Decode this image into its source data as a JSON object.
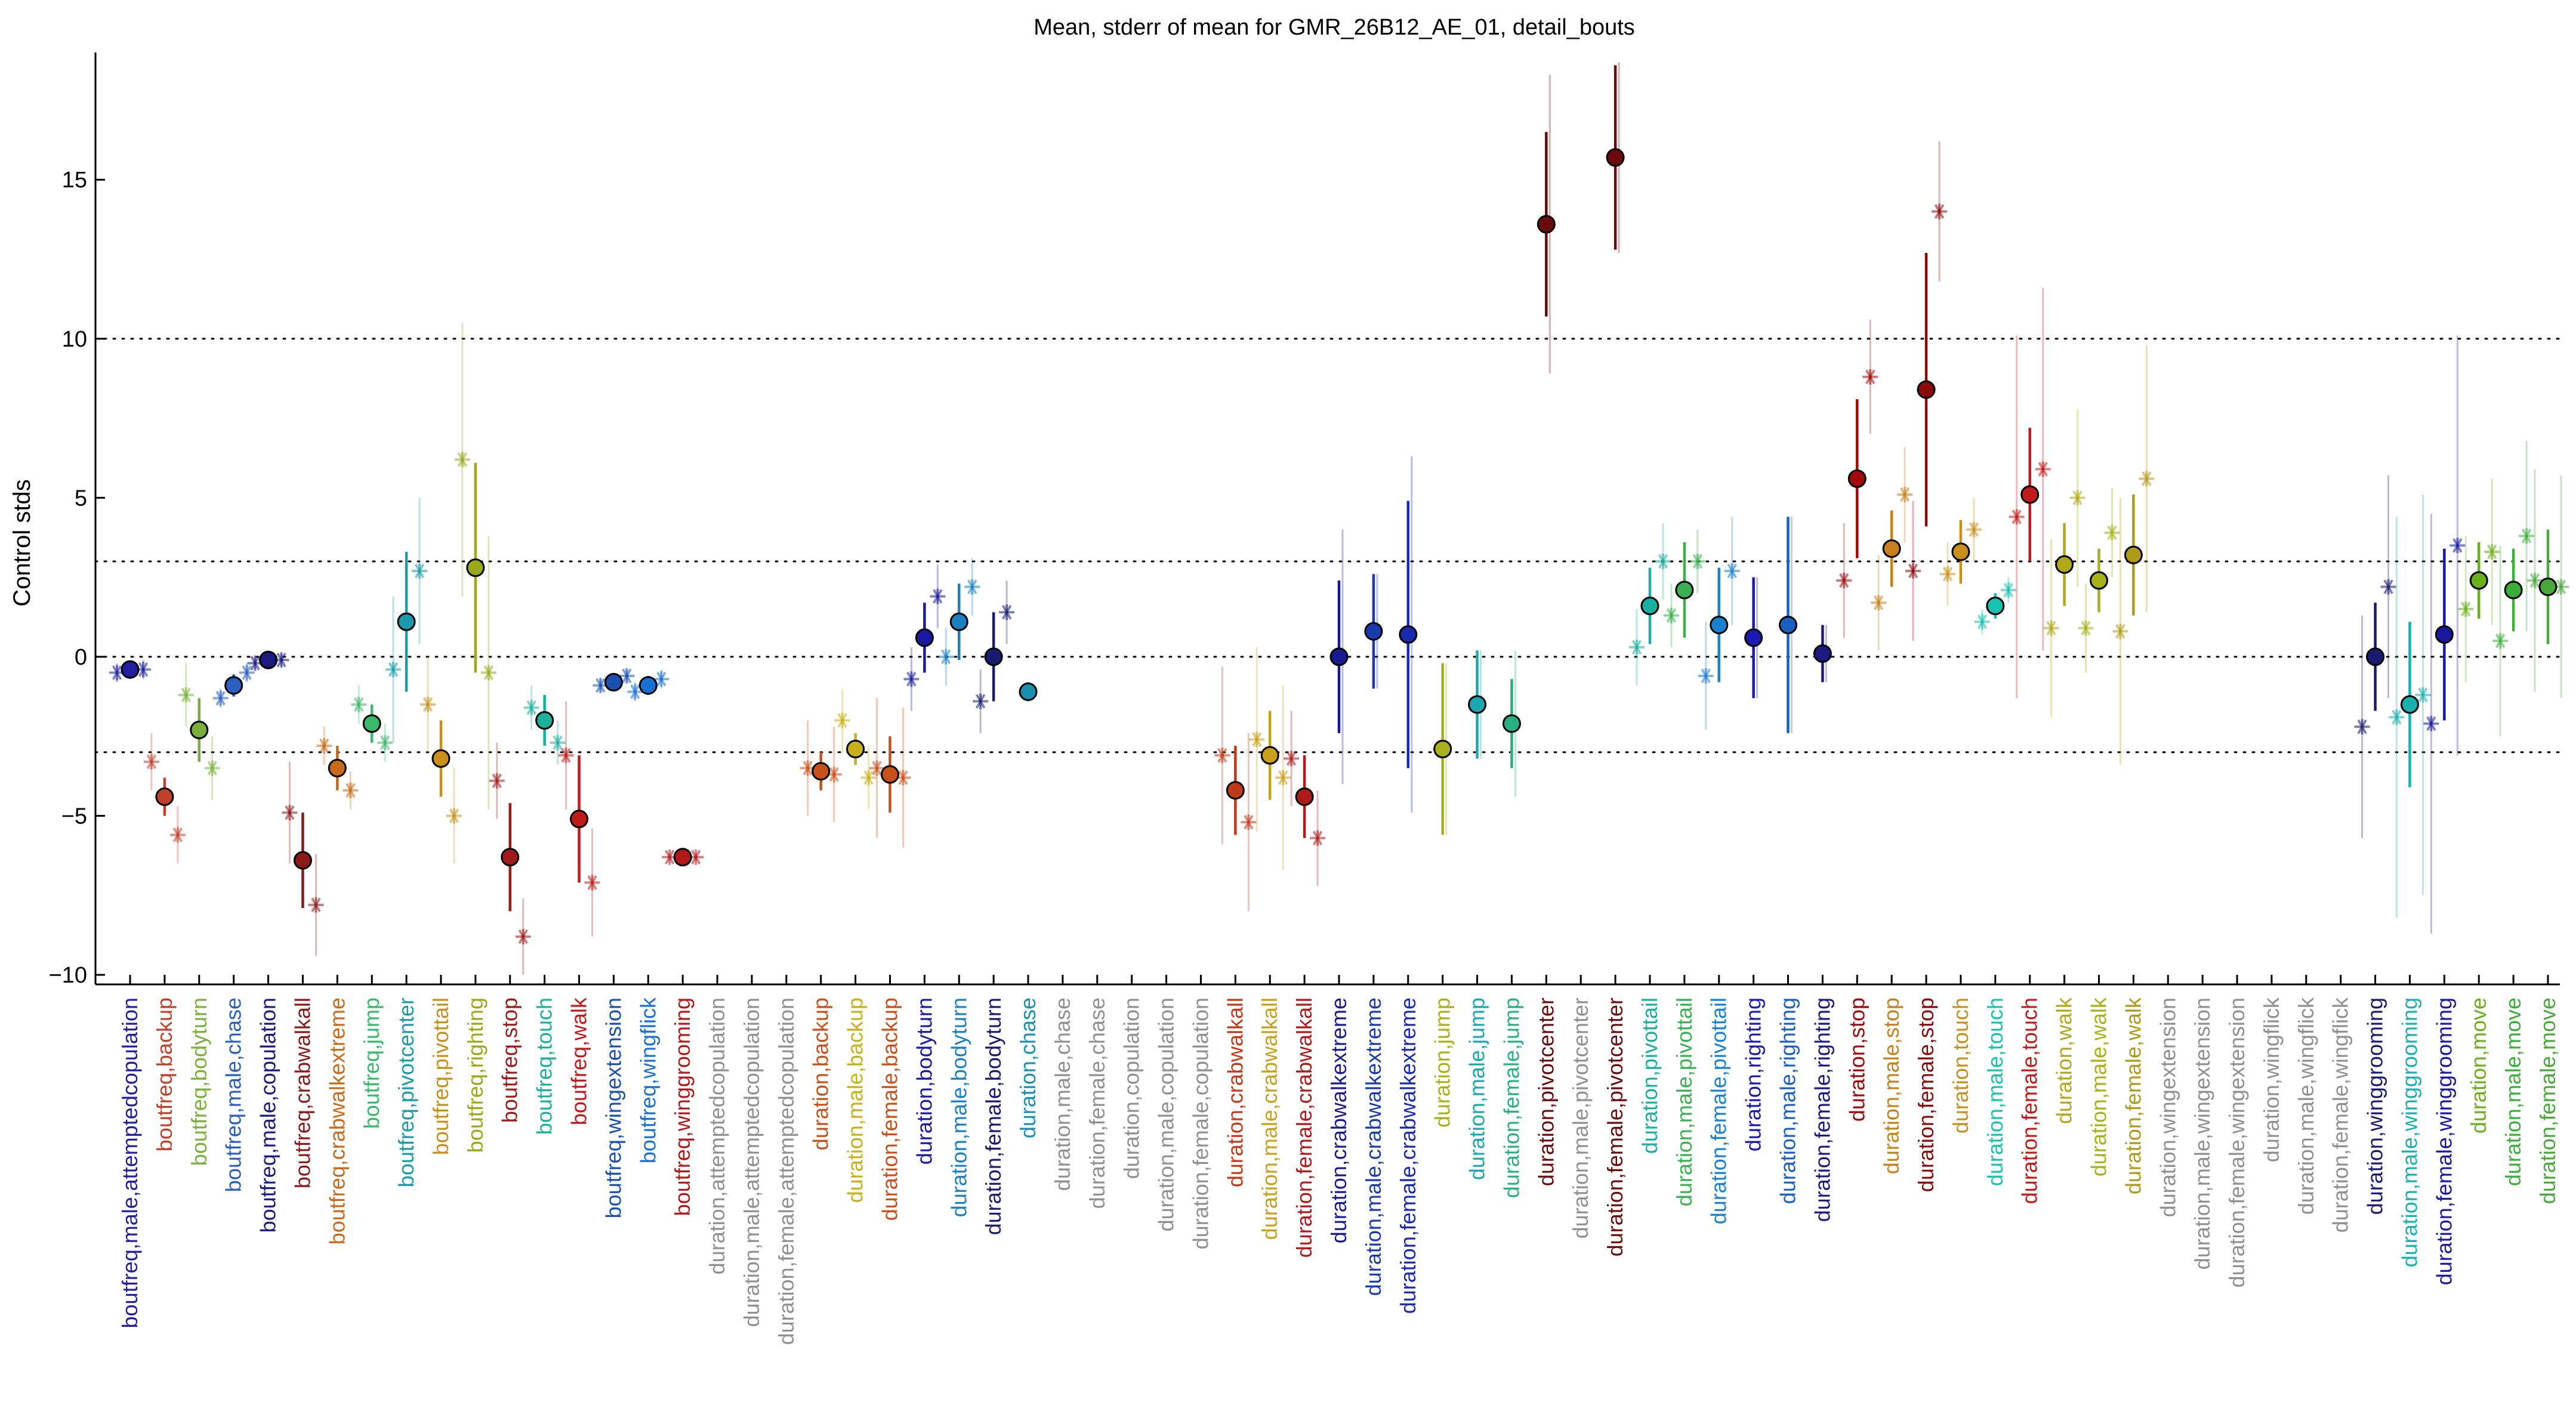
{
  "chart_data": {
    "type": "scatter",
    "title": "Mean, stderr of mean for GMR_26B12_AE_01, detail_bouts",
    "ylabel": "Control stds",
    "xlabel": "",
    "ylim": [
      -10.3,
      19.0
    ],
    "yticks": [
      -10,
      -5,
      0,
      5,
      10,
      15
    ],
    "reference_lines": [
      -3,
      0,
      3,
      10
    ],
    "grid": false,
    "series_description": "Filled circles: mean with stderr bar; asterisks: individual experiment means (faded)",
    "categories": [
      {
        "label": "boutfreq,male,attemptedcopulation",
        "color": "#1f1fa0",
        "mean": -0.4,
        "err": 0.15,
        "stars": [
          -0.5,
          -0.4
        ],
        "star_err": 0.3
      },
      {
        "label": "boutfreq,backup",
        "color": "#c0402a",
        "mean": -4.4,
        "err": 0.6,
        "stars": [
          -3.3,
          -5.6
        ],
        "star_err": 0.9
      },
      {
        "label": "boutfreq,bodyturn",
        "color": "#7ab03a",
        "mean": -2.3,
        "err": 1.0,
        "stars": [
          -1.2,
          -3.5
        ],
        "star_err": 1.0
      },
      {
        "label": "boutfreq,male,chase",
        "color": "#2a5fbf",
        "mean": -0.9,
        "err": 0.35,
        "stars": [
          -1.3,
          -0.5
        ],
        "star_err": 0.3
      },
      {
        "label": "boutfreq,male,copulation",
        "color": "#1a1a80",
        "mean": -0.1,
        "err": 0.1,
        "stars": [
          -0.2,
          -0.1
        ],
        "star_err": 0.2
      },
      {
        "label": "boutfreq,crabwalkall",
        "color": "#8a1a1a",
        "mean": -6.4,
        "err": 1.5,
        "stars": [
          -4.9,
          -7.8
        ],
        "star_err": 1.6
      },
      {
        "label": "boutfreq,crabwalkextreme",
        "color": "#c86a1a",
        "mean": -3.5,
        "err": 0.7,
        "stars": [
          -2.8,
          -4.2
        ],
        "star_err": 0.6
      },
      {
        "label": "boutfreq,jump",
        "color": "#3ab86a",
        "mean": -2.1,
        "err": 0.6,
        "stars": [
          -1.5,
          -2.7
        ],
        "star_err": 0.6
      },
      {
        "label": "boutfreq,pivotcenter",
        "color": "#1a9aaa",
        "mean": 1.1,
        "err": 2.2,
        "stars": [
          -0.4,
          2.7
        ],
        "star_err": 2.3
      },
      {
        "label": "boutfreq,pivottail",
        "color": "#c8901a",
        "mean": -3.2,
        "err": 1.2,
        "stars": [
          -1.5,
          -5.0
        ],
        "star_err": 1.5
      },
      {
        "label": "boutfreq,righting",
        "color": "#9aa81a",
        "mean": 2.8,
        "err": 3.3,
        "stars": [
          6.2,
          -0.5
        ],
        "star_err": 4.3
      },
      {
        "label": "boutfreq,stop",
        "color": "#a01a1a",
        "mean": -6.3,
        "err": 1.7,
        "stars": [
          -3.9,
          -8.8
        ],
        "star_err": 1.2
      },
      {
        "label": "boutfreq,touch",
        "color": "#1ab09a",
        "mean": -2.0,
        "err": 0.8,
        "stars": [
          -1.6,
          -2.7
        ],
        "star_err": 0.7
      },
      {
        "label": "boutfreq,walk",
        "color": "#c01a1a",
        "mean": -5.1,
        "err": 2.0,
        "stars": [
          -3.1,
          -7.1
        ],
        "star_err": 1.7
      },
      {
        "label": "boutfreq,wingextension",
        "color": "#1a50b0",
        "mean": -0.8,
        "err": 0.2,
        "stars": [
          -0.9,
          -0.6
        ],
        "star_err": 0.2
      },
      {
        "label": "boutfreq,wingflick",
        "color": "#1a70d0",
        "mean": -0.9,
        "err": 0.3,
        "stars": [
          -1.1,
          -0.7
        ],
        "star_err": 0.3
      },
      {
        "label": "boutfreq,winggrooming",
        "color": "#b01a1a",
        "mean": -6.3,
        "err": 0.1,
        "stars": [
          -6.3,
          -6.3
        ],
        "star_err": 0.1
      },
      {
        "label": "duration,attemptedcopulation",
        "color": "#909090",
        "mean": null
      },
      {
        "label": "duration,male,attemptedcopulation",
        "color": "#909090",
        "mean": null
      },
      {
        "label": "duration,female,attemptedcopulation",
        "color": "#909090",
        "mean": null
      },
      {
        "label": "duration,backup",
        "color": "#c8501a",
        "mean": -3.6,
        "err": 0.6,
        "stars": [
          -3.5,
          -3.7
        ],
        "star_err": 1.5
      },
      {
        "label": "duration,male,backup",
        "color": "#c8b01a",
        "mean": -2.9,
        "err": 0.5,
        "stars": [
          -2.0,
          -3.8
        ],
        "star_err": 1.0
      },
      {
        "label": "duration,female,backup",
        "color": "#c8501a",
        "mean": -3.7,
        "err": 1.2,
        "stars": [
          -3.5,
          -3.8
        ],
        "star_err": 2.2
      },
      {
        "label": "duration,bodyturn",
        "color": "#1a1aa0",
        "mean": 0.6,
        "err": 1.1,
        "stars": [
          -0.7,
          1.9
        ],
        "star_err": 1.0
      },
      {
        "label": "duration,male,bodyturn",
        "color": "#1a80c0",
        "mean": 1.1,
        "err": 1.2,
        "stars": [
          0.0,
          2.2
        ],
        "star_err": 0.9
      },
      {
        "label": "duration,female,bodyturn",
        "color": "#1a1a70",
        "mean": 0.0,
        "err": 1.4,
        "stars": [
          -1.4,
          1.4
        ],
        "star_err": 1.0
      },
      {
        "label": "duration,chase",
        "color": "#1a90b0",
        "mean": -1.1,
        "err": 0.3,
        "stars": [],
        "star_err": 0
      },
      {
        "label": "duration,male,chase",
        "color": "#909090",
        "mean": null
      },
      {
        "label": "duration,female,chase",
        "color": "#909090",
        "mean": null
      },
      {
        "label": "duration,copulation",
        "color": "#909090",
        "mean": null
      },
      {
        "label": "duration,male,copulation",
        "color": "#909090",
        "mean": null
      },
      {
        "label": "duration,female,copulation",
        "color": "#909090",
        "mean": null
      },
      {
        "label": "duration,crabwalkall",
        "color": "#c03a1a",
        "mean": -4.2,
        "err": 1.4,
        "stars": [
          -3.1,
          -5.2
        ],
        "star_err": 2.8
      },
      {
        "label": "duration,male,crabwalkall",
        "color": "#c8a01a",
        "mean": -3.1,
        "err": 1.4,
        "stars": [
          -2.6,
          -3.8
        ],
        "star_err": 2.9
      },
      {
        "label": "duration,female,crabwalkall",
        "color": "#b01a1a",
        "mean": -4.4,
        "err": 1.3,
        "stars": [
          -3.2,
          -5.7
        ],
        "star_err": 1.5
      },
      {
        "label": "duration,crabwalkextreme",
        "color": "#1a1a90",
        "mean": 0.0,
        "err": 2.4,
        "stars": [],
        "star_err": 4.0
      },
      {
        "label": "duration,male,crabwalkextreme",
        "color": "#1a3ab0",
        "mean": 0.8,
        "err": 1.8,
        "stars": [],
        "star_err": 1.8
      },
      {
        "label": "duration,female,crabwalkextreme",
        "color": "#1a2ab0",
        "mean": 0.7,
        "err": 4.2,
        "stars": [],
        "star_err": 5.6
      },
      {
        "label": "duration,jump",
        "color": "#a8b01a",
        "mean": -2.9,
        "err": 2.7,
        "stars": [],
        "star_err": 2.7
      },
      {
        "label": "duration,male,jump",
        "color": "#1aa8b0",
        "mean": -1.5,
        "err": 1.7,
        "stars": [],
        "star_err": 1.7
      },
      {
        "label": "duration,female,jump",
        "color": "#2ab080",
        "mean": -2.1,
        "err": 1.4,
        "stars": [],
        "star_err": 2.3
      },
      {
        "label": "duration,pivotcenter",
        "color": "#6a0a0a",
        "mean": 13.6,
        "err": 2.9,
        "stars": [],
        "star_err": 4.7
      },
      {
        "label": "duration,male,pivotcenter",
        "color": "#909090",
        "mean": null
      },
      {
        "label": "duration,female,pivotcenter",
        "color": "#6a0a0a",
        "mean": 15.7,
        "err": 2.9,
        "stars": [],
        "star_err": 3.0
      },
      {
        "label": "duration,pivottail",
        "color": "#1ab0a0",
        "mean": 1.6,
        "err": 1.2,
        "stars": [
          0.3,
          3.0
        ],
        "star_err": 1.2
      },
      {
        "label": "duration,male,pivottail",
        "color": "#3ab050",
        "mean": 2.1,
        "err": 1.5,
        "stars": [
          1.3,
          3.0
        ],
        "star_err": 1.0
      },
      {
        "label": "duration,female,pivottail",
        "color": "#1a80d0",
        "mean": 1.0,
        "err": 1.8,
        "stars": [
          -0.6,
          2.7
        ],
        "star_err": 1.7
      },
      {
        "label": "duration,righting",
        "color": "#1a1ab0",
        "mean": 0.6,
        "err": 1.9,
        "stars": [],
        "star_err": 1.9
      },
      {
        "label": "duration,male,righting",
        "color": "#1a60c0",
        "mean": 1.0,
        "err": 3.4,
        "stars": [],
        "star_err": 3.4
      },
      {
        "label": "duration,female,righting",
        "color": "#1a1a80",
        "mean": 0.1,
        "err": 0.9,
        "stars": [],
        "star_err": 0.9
      },
      {
        "label": "duration,stop",
        "color": "#a00a0a",
        "mean": 5.6,
        "err": 2.5,
        "stars": [
          2.4,
          8.8
        ],
        "star_err": 1.8
      },
      {
        "label": "duration,male,stop",
        "color": "#c8801a",
        "mean": 3.4,
        "err": 1.2,
        "stars": [
          1.7,
          5.1
        ],
        "star_err": 1.5
      },
      {
        "label": "duration,female,stop",
        "color": "#8a0a0a",
        "mean": 8.4,
        "err": 4.3,
        "stars": [
          2.7,
          14.0
        ],
        "star_err": 2.2
      },
      {
        "label": "duration,touch",
        "color": "#c8901a",
        "mean": 3.3,
        "err": 1.0,
        "stars": [
          2.6,
          4.0
        ],
        "star_err": 1.0
      },
      {
        "label": "duration,male,touch",
        "color": "#1ac0b0",
        "mean": 1.6,
        "err": 0.4,
        "stars": [
          1.1,
          2.1
        ],
        "star_err": 0.4
      },
      {
        "label": "duration,female,touch",
        "color": "#c01a1a",
        "mean": 5.1,
        "err": 2.1,
        "stars": [
          4.4,
          5.9
        ],
        "star_err": 5.7
      },
      {
        "label": "duration,walk",
        "color": "#b0a81a",
        "mean": 2.9,
        "err": 1.3,
        "stars": [
          0.9,
          5.0
        ],
        "star_err": 2.8
      },
      {
        "label": "duration,male,walk",
        "color": "#a8b01a",
        "mean": 2.4,
        "err": 1.0,
        "stars": [
          0.9,
          3.9
        ],
        "star_err": 1.4
      },
      {
        "label": "duration,female,walk",
        "color": "#b09a1a",
        "mean": 3.2,
        "err": 1.9,
        "stars": [
          0.8,
          5.6
        ],
        "star_err": 4.2
      },
      {
        "label": "duration,wingextension",
        "color": "#909090",
        "mean": null
      },
      {
        "label": "duration,male,wingextension",
        "color": "#909090",
        "mean": null
      },
      {
        "label": "duration,female,wingextension",
        "color": "#909090",
        "mean": null
      },
      {
        "label": "duration,wingflick",
        "color": "#909090",
        "mean": null
      },
      {
        "label": "duration,male,wingflick",
        "color": "#909090",
        "mean": null
      },
      {
        "label": "duration,female,wingflick",
        "color": "#909090",
        "mean": null
      },
      {
        "label": "duration,winggrooming",
        "color": "#1a1a70",
        "mean": 0.0,
        "err": 1.7,
        "stars": [
          -2.2,
          2.2
        ],
        "star_err": 3.5
      },
      {
        "label": "duration,male,winggrooming",
        "color": "#1ab0b0",
        "mean": -1.5,
        "err": 2.6,
        "stars": [
          -1.9,
          -1.2
        ],
        "star_err": 6.3
      },
      {
        "label": "duration,female,winggrooming",
        "color": "#1a1aa0",
        "mean": 0.7,
        "err": 2.7,
        "stars": [
          -2.1,
          3.5
        ],
        "star_err": 6.6
      },
      {
        "label": "duration,move",
        "color": "#6ab01a",
        "mean": 2.4,
        "err": 1.2,
        "stars": [
          1.5,
          3.3
        ],
        "star_err": 2.3
      },
      {
        "label": "duration,male,move",
        "color": "#3ab03a",
        "mean": 2.1,
        "err": 1.3,
        "stars": [
          0.5,
          3.8
        ],
        "star_err": 3.0
      },
      {
        "label": "duration,female,move",
        "color": "#4aa83a",
        "mean": 2.2,
        "err": 1.8,
        "stars": [
          2.4,
          2.2
        ],
        "star_err": 3.5
      }
    ]
  }
}
